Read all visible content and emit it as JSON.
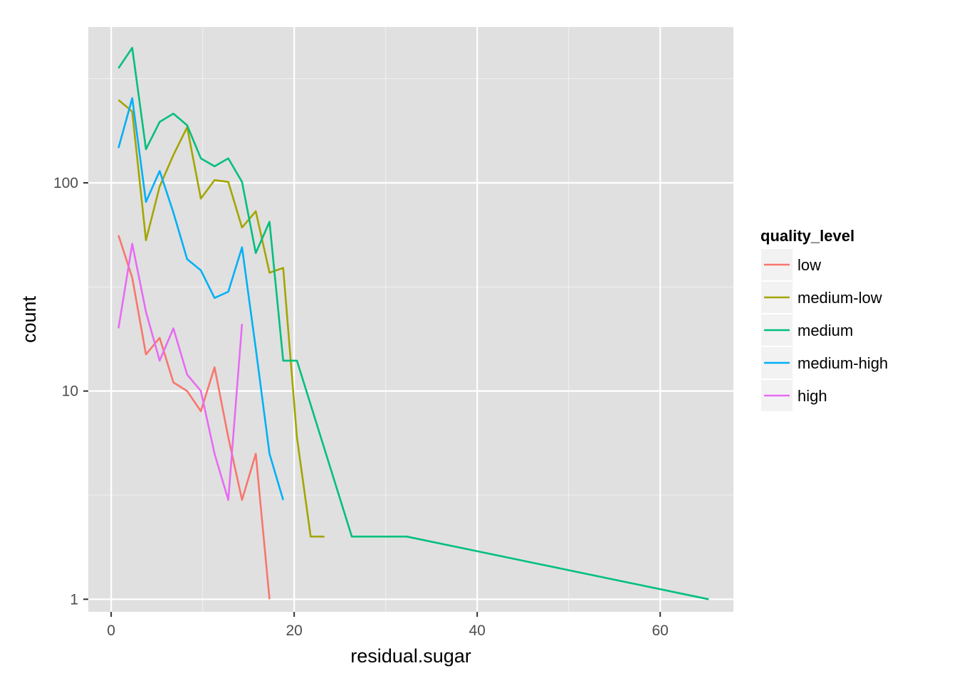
{
  "chart_data": {
    "type": "line",
    "title": "",
    "xlabel": "residual.sugar",
    "ylabel": "count",
    "xlim": [
      -2.5,
      68
    ],
    "ylim": [
      0.87,
      560
    ],
    "y_scale": "log10",
    "x_ticks": [
      0,
      20,
      40,
      60
    ],
    "x_tick_labels": [
      "0",
      "20",
      "40",
      "60"
    ],
    "y_ticks": [
      1,
      10,
      100
    ],
    "y_tick_labels": [
      "1",
      "10",
      "100"
    ],
    "grid": true,
    "legend": {
      "title": "quality_level",
      "position": "right"
    },
    "colors": {
      "background": "#ebebeb",
      "panel": "#e0e0e0",
      "grid": "#ffffff"
    },
    "series": [
      {
        "name": "low",
        "color": "#f8766d",
        "x": [
          0.8,
          2.3,
          3.8,
          5.3,
          6.8,
          8.3,
          9.8,
          11.3,
          12.8,
          14.3,
          15.8,
          17.3
        ],
        "y": [
          56,
          35,
          15,
          18,
          11,
          10,
          8,
          13,
          6,
          3,
          5,
          1
        ]
      },
      {
        "name": "medium-low",
        "color": "#a3a500",
        "x": [
          0.8,
          2.3,
          3.8,
          5.3,
          6.8,
          8.3,
          9.8,
          11.3,
          12.8,
          14.3,
          15.8,
          17.3,
          18.8,
          20.3,
          21.8,
          23.3
        ],
        "y": [
          250,
          220,
          53,
          96,
          136,
          185,
          84,
          103,
          101,
          61,
          73,
          37,
          39,
          6,
          2,
          2
        ]
      },
      {
        "name": "medium",
        "color": "#00bf7d",
        "x": [
          0.8,
          2.3,
          3.8,
          5.3,
          6.8,
          8.3,
          9.8,
          11.3,
          12.8,
          14.3,
          15.8,
          17.3,
          18.8,
          20.3,
          26.3,
          32.3,
          65.3
        ],
        "y": [
          355,
          445,
          145,
          196,
          215,
          189,
          131,
          120,
          131,
          101,
          46,
          65,
          14,
          14,
          2,
          2,
          1
        ]
      },
      {
        "name": "medium-high",
        "color": "#00b0f6",
        "x": [
          0.8,
          2.3,
          3.8,
          5.3,
          6.8,
          8.3,
          9.8,
          11.3,
          12.8,
          14.3,
          15.8,
          17.3,
          18.8
        ],
        "y": [
          147,
          255,
          81,
          114,
          72,
          43,
          38,
          28,
          30,
          49,
          16,
          5,
          3
        ]
      },
      {
        "name": "high",
        "color": "#e76bf3",
        "x": [
          0.8,
          2.3,
          3.8,
          5.3,
          6.8,
          8.3,
          9.8,
          11.3,
          12.8,
          14.3
        ],
        "y": [
          20,
          51,
          24,
          14,
          20,
          12,
          10,
          5,
          3,
          21
        ]
      }
    ]
  }
}
